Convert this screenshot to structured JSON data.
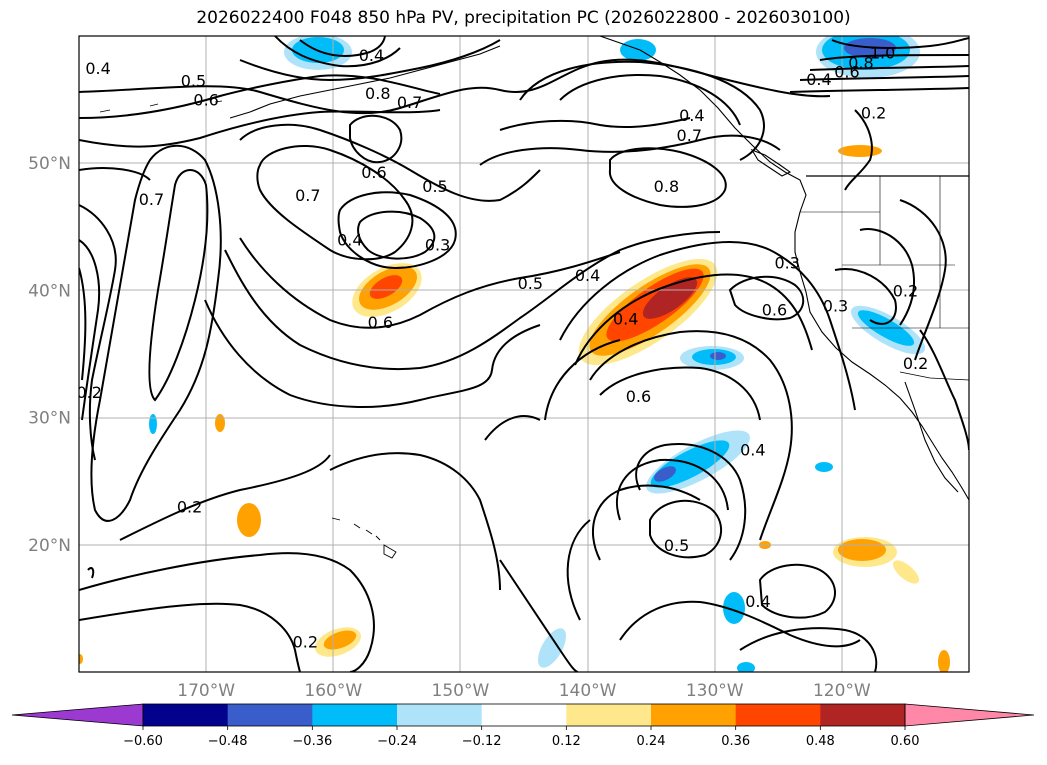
{
  "title": "2026022400 F048 850 hPa PV, precipitation PC (2026022800 - 2026030100)",
  "map": {
    "lon_range": [
      -180,
      -110
    ],
    "lat_range": [
      10,
      60
    ],
    "lat_ticks": [
      {
        "value": 20,
        "label": "20°N"
      },
      {
        "value": 30,
        "label": "30°N"
      },
      {
        "value": 40,
        "label": "40°N"
      },
      {
        "value": 50,
        "label": "50°N"
      }
    ],
    "lon_ticks": [
      {
        "value": -170,
        "label": "170°W"
      },
      {
        "value": -160,
        "label": "160°W"
      },
      {
        "value": -150,
        "label": "150°W"
      },
      {
        "value": -140,
        "label": "140°W"
      },
      {
        "value": -130,
        "label": "130°W"
      },
      {
        "value": -120,
        "label": "120°W"
      }
    ],
    "gridlines": true,
    "contour_labels": [
      {
        "text": "0.4",
        "lon": -178.5,
        "lat": 57.5
      },
      {
        "text": "0.5",
        "lon": -171,
        "lat": 56.5
      },
      {
        "text": "0.6",
        "lon": -170,
        "lat": 55
      },
      {
        "text": "0.4",
        "lon": -157,
        "lat": 58.5
      },
      {
        "text": "0.8",
        "lon": -156.5,
        "lat": 55.5
      },
      {
        "text": "0.7",
        "lon": -154,
        "lat": 54.8
      },
      {
        "text": "0.7",
        "lon": -174.3,
        "lat": 47.2
      },
      {
        "text": "0.7",
        "lon": -162,
        "lat": 47.5
      },
      {
        "text": "0.6",
        "lon": -156.8,
        "lat": 49.3
      },
      {
        "text": "0.5",
        "lon": -152,
        "lat": 48.2
      },
      {
        "text": "0.4",
        "lon": -158.7,
        "lat": 44
      },
      {
        "text": "0.3",
        "lon": -151.8,
        "lat": 43.6
      },
      {
        "text": "0.6",
        "lon": -156.3,
        "lat": 37.5
      },
      {
        "text": "0.5",
        "lon": -144.5,
        "lat": 40.6
      },
      {
        "text": "0.4",
        "lon": -140,
        "lat": 41.2
      },
      {
        "text": "0.4",
        "lon": -137,
        "lat": 37.8
      },
      {
        "text": "0.6",
        "lon": -136,
        "lat": 31.7
      },
      {
        "text": "0.7",
        "lon": -132,
        "lat": 52.2
      },
      {
        "text": "0.8",
        "lon": -133.8,
        "lat": 48.2
      },
      {
        "text": "0.4",
        "lon": -131.8,
        "lat": 53.8
      },
      {
        "text": "0.3",
        "lon": -124.3,
        "lat": 42.2
      },
      {
        "text": "0.6",
        "lon": -125.3,
        "lat": 38.5
      },
      {
        "text": "0.3",
        "lon": -120.5,
        "lat": 38.8
      },
      {
        "text": "0.2",
        "lon": -115,
        "lat": 40
      },
      {
        "text": "0.2",
        "lon": -114.2,
        "lat": 34.3
      },
      {
        "text": "1.0",
        "lon": -116.8,
        "lat": 58.7
      },
      {
        "text": "0.8",
        "lon": -118.5,
        "lat": 57.9
      },
      {
        "text": "0.6",
        "lon": -119.6,
        "lat": 57.2
      },
      {
        "text": "0.4",
        "lon": -121.8,
        "lat": 56.6
      },
      {
        "text": "0.2",
        "lon": -117.5,
        "lat": 54
      },
      {
        "text": "0.2",
        "lon": -179.2,
        "lat": 32
      },
      {
        "text": "0.2",
        "lon": -171.3,
        "lat": 23
      },
      {
        "text": "0.4",
        "lon": -127,
        "lat": 27.5
      },
      {
        "text": "0.5",
        "lon": -133,
        "lat": 20
      },
      {
        "text": "0.4",
        "lon": -126.6,
        "lat": 15.6
      },
      {
        "text": "0.2",
        "lon": -162.2,
        "lat": 12.4
      }
    ]
  },
  "colorbar": {
    "levels": [
      -0.6,
      -0.48,
      -0.36,
      -0.24,
      -0.12,
      0.12,
      0.24,
      0.36,
      0.48,
      0.6
    ],
    "labels": [
      "−0.60",
      "−0.48",
      "−0.36",
      "−0.24",
      "−0.12",
      "0.12",
      "0.24",
      "0.36",
      "0.48",
      "0.60"
    ],
    "colors": [
      "#9b39d1",
      "#02028c",
      "#3a5dcc",
      "#00bdfa",
      "#aee3fa",
      "#ffffff",
      "#ffe88c",
      "#ffa100",
      "#ff4500",
      "#b02424",
      "#ff87a8"
    ],
    "extend": "both"
  }
}
